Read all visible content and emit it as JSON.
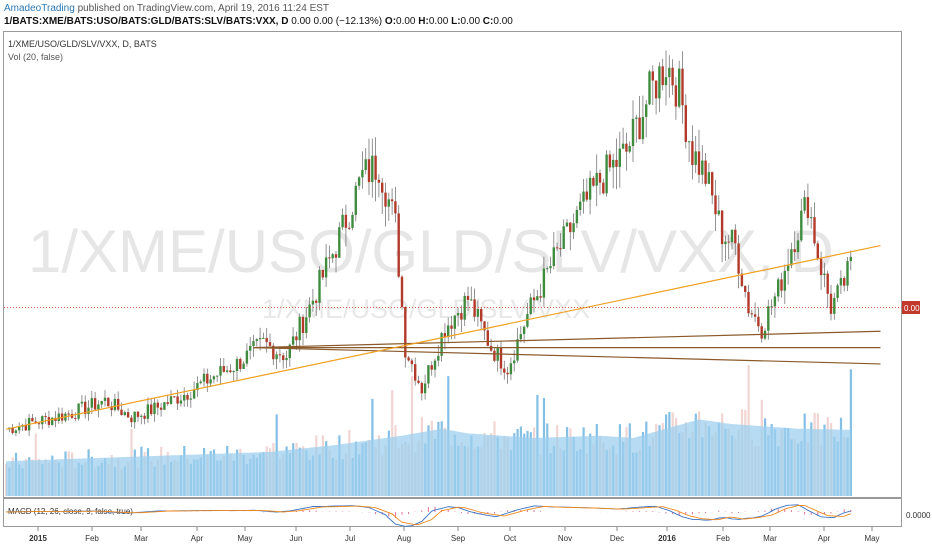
{
  "header": {
    "author": "AmadeoTrading",
    "published": "published on TradingView.com, April 19, 2016 11:24 EST"
  },
  "legend": {
    "symbol": "1/BATS:XME/BATS:USO/BATS:GLD/BATS:SLV/BATS:VXX, D",
    "change": "0.00 0.00 (−12.13%)",
    "o_label": "O:",
    "o_value": "0.00",
    "h_label": "H:",
    "h_value": "0.00",
    "l_label": "L:",
    "l_value": "0.00",
    "c_label": "C:",
    "c_value": "0.00"
  },
  "pane": {
    "title": "1/XME/USO/GLD/SLV/VXX, D, BATS",
    "vol_label": "Vol (20, false)",
    "watermark_large": "1/XME/USO/GLD/SLV/VXX, D",
    "watermark_small": "1/XME/USO/GLD/SLV/VXX",
    "price_tag": "0.00"
  },
  "macd": {
    "label": "MACD (12, 26, close, 9, false, true)",
    "axis_value": "0.0000"
  },
  "colors": {
    "up": "#3f8c3f",
    "down": "#b23a2a",
    "volume": "#6fb4e0",
    "volume_ma": "#9ecfee",
    "trend_brown": "#8b5a2b",
    "trend_orange": "#f0a020",
    "price_line": "#e05a4a",
    "macd_line": "#3a73c4",
    "signal_line": "#f08a1e",
    "histogram": "#d0306a"
  },
  "chart_data": {
    "type": "candlestick",
    "x_labels": [
      "2015",
      "Feb",
      "Mar",
      "Apr",
      "May",
      "Jun",
      "Jul",
      "Aug",
      "Sep",
      "Oct",
      "Nov",
      "Dec",
      "2016",
      "Feb",
      "Mar",
      "Apr",
      "May"
    ],
    "y_axis_label": "0.00",
    "price_path": [
      [
        0,
        0.1
      ],
      [
        10,
        0.12
      ],
      [
        20,
        0.14
      ],
      [
        30,
        0.17
      ],
      [
        38,
        0.13
      ],
      [
        45,
        0.15
      ],
      [
        55,
        0.19
      ],
      [
        63,
        0.23
      ],
      [
        70,
        0.26
      ],
      [
        78,
        0.31
      ],
      [
        85,
        0.28
      ],
      [
        92,
        0.4
      ],
      [
        100,
        0.55
      ],
      [
        108,
        0.72
      ],
      [
        113,
        0.75
      ],
      [
        118,
        0.6
      ],
      [
        121,
        0.3
      ],
      [
        126,
        0.2
      ],
      [
        133,
        0.35
      ],
      [
        140,
        0.42
      ],
      [
        147,
        0.3
      ],
      [
        152,
        0.25
      ],
      [
        158,
        0.38
      ],
      [
        165,
        0.5
      ],
      [
        173,
        0.62
      ],
      [
        180,
        0.71
      ],
      [
        188,
        0.78
      ],
      [
        195,
        0.92
      ],
      [
        200,
        1.0
      ],
      [
        204,
        0.93
      ],
      [
        208,
        0.78
      ],
      [
        212,
        0.72
      ],
      [
        217,
        0.58
      ],
      [
        221,
        0.55
      ],
      [
        225,
        0.4
      ],
      [
        229,
        0.35
      ],
      [
        234,
        0.44
      ],
      [
        238,
        0.55
      ],
      [
        243,
        0.66
      ],
      [
        246,
        0.53
      ],
      [
        250,
        0.4
      ],
      [
        253,
        0.44
      ],
      [
        256,
        0.5
      ]
    ],
    "volume_ma_path": [
      [
        0,
        0.3
      ],
      [
        40,
        0.34
      ],
      [
        80,
        0.38
      ],
      [
        100,
        0.44
      ],
      [
        120,
        0.52
      ],
      [
        132,
        0.58
      ],
      [
        140,
        0.54
      ],
      [
        160,
        0.5
      ],
      [
        180,
        0.52
      ],
      [
        190,
        0.5
      ],
      [
        200,
        0.58
      ],
      [
        210,
        0.66
      ],
      [
        220,
        0.62
      ],
      [
        240,
        0.58
      ],
      [
        256,
        0.57
      ]
    ],
    "trendlines": [
      {
        "color": "brown",
        "from": [
          75,
          0.3
        ],
        "to": [
          265,
          0.26
        ]
      },
      {
        "color": "brown",
        "from": [
          75,
          0.3
        ],
        "to": [
          265,
          0.3
        ]
      },
      {
        "color": "brown",
        "from": [
          75,
          0.3
        ],
        "to": [
          265,
          0.34
        ]
      },
      {
        "color": "orange",
        "from": [
          0,
          0.1
        ],
        "to": [
          265,
          0.55
        ]
      }
    ]
  }
}
